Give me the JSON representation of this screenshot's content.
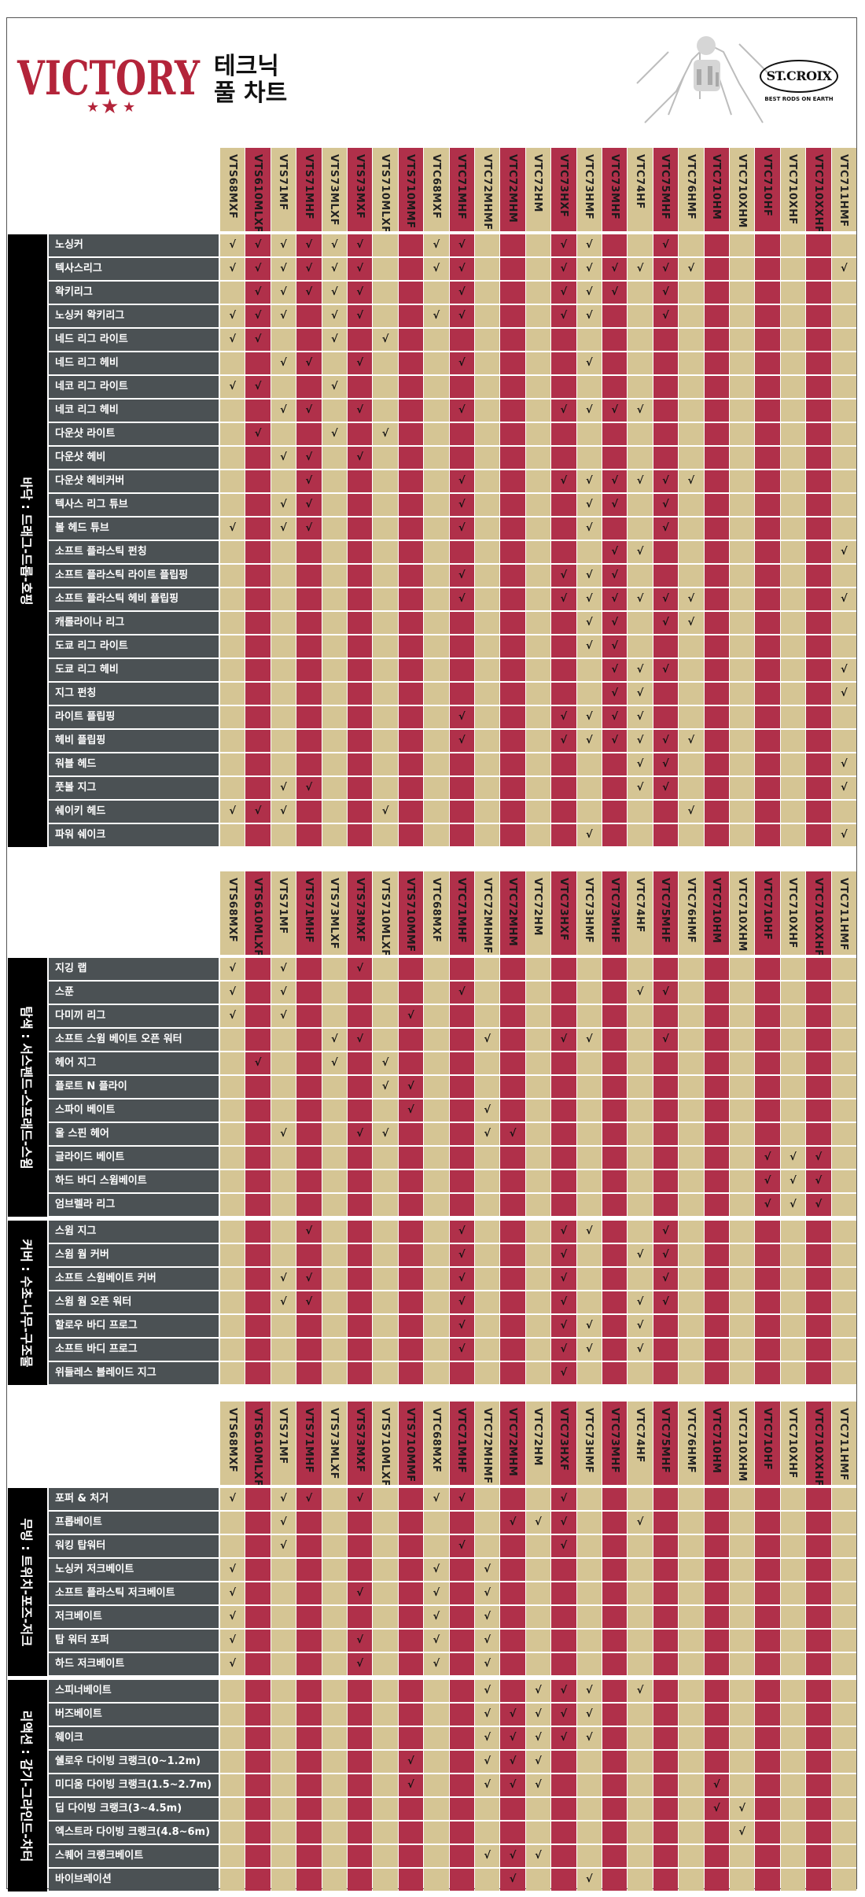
{
  "page": {
    "brand": "VICTORY",
    "title_line1": "테크닉",
    "title_line2": "풀 차트",
    "maker_logo": "ST.CROIX",
    "maker_tagline": "BEST RODS ON EARTH",
    "colors": {
      "tan": "#d5c594",
      "red": "#b0304a",
      "label_bg": "#4b5154",
      "category_bg": "#000000",
      "brand_red": "#b3243a"
    }
  },
  "models": [
    "VTS68MXF",
    "VTS610MLXF",
    "VTS71MF",
    "VTS71MHF",
    "VTS73MLXF",
    "VTS73MXF",
    "VTS710MLXF",
    "VTS710MMF",
    "VTC68MXF",
    "VTC71MHF",
    "VTC72MHMF",
    "VTC72MHM",
    "VTC72HM",
    "VTC73HXF",
    "VTC73HMF",
    "VTC73MHF",
    "VTC74HF",
    "VTC75MHF",
    "VTC76HMF",
    "VTC710HM",
    "VTC710XHM",
    "VTC710HF",
    "VTC710XHF",
    "VTC710XXHF",
    "VTC711HMF"
  ],
  "sections": [
    {
      "models": [
        "VTS68MXF",
        "VTS610MLXF",
        "VTS71MF",
        "VTS71MHF",
        "VTS73MLXF",
        "VTS73MXF",
        "VTS710MLXF",
        "VTS710MMF",
        "VTC68MXF",
        "VTC71MHF",
        "VTC72MHMF",
        "VTC72MHM",
        "VTC72HM",
        "VTC73HXF",
        "VTC73HMF",
        "VTC73MHF",
        "VTC74HF",
        "VTC75MHF",
        "VTC76HMF",
        "VTC710HM",
        "VTC710XHM",
        "VTC710HF",
        "VTC710XHF",
        "VTC710XXHF",
        "VTC711HMF"
      ],
      "groups": [
        {
          "category": "바닥 : 드래그-드롭-호핑",
          "rows": [
            {
              "label": "노싱커",
              "checks": [
                0,
                1,
                2,
                3,
                4,
                5,
                8,
                9,
                13,
                14,
                17
              ]
            },
            {
              "label": "텍사스리그",
              "checks": [
                0,
                1,
                2,
                3,
                4,
                5,
                8,
                9,
                13,
                14,
                15,
                16,
                17,
                18,
                24
              ]
            },
            {
              "label": "왁키리그",
              "checks": [
                1,
                2,
                3,
                4,
                5,
                9,
                13,
                14,
                15,
                17
              ]
            },
            {
              "label": "노싱커 왁키리그",
              "checks": [
                0,
                1,
                2,
                4,
                5,
                8,
                9,
                13,
                14,
                17
              ]
            },
            {
              "label": "네드 리그 라이트",
              "checks": [
                0,
                1,
                4,
                6
              ]
            },
            {
              "label": "네드 리그 헤비",
              "checks": [
                2,
                3,
                5,
                9,
                14
              ]
            },
            {
              "label": "네코 리그 라이트",
              "checks": [
                0,
                1,
                4
              ]
            },
            {
              "label": "네코 리그 헤비",
              "checks": [
                2,
                3,
                5,
                9,
                13,
                14,
                15,
                16
              ]
            },
            {
              "label": "다운샷 라이트",
              "checks": [
                1,
                4,
                6
              ]
            },
            {
              "label": "다운샷 헤비",
              "checks": [
                2,
                3,
                5
              ]
            },
            {
              "label": "다운샷 헤비커버",
              "checks": [
                3,
                9,
                13,
                14,
                15,
                16,
                17,
                18
              ]
            },
            {
              "label": "텍사스 리그 튜브",
              "checks": [
                2,
                3,
                9,
                14,
                15,
                17
              ]
            },
            {
              "label": "볼 헤드 튜브",
              "checks": [
                0,
                2,
                3,
                9,
                14,
                17
              ]
            },
            {
              "label": "소프트 플라스틱 펀칭",
              "checks": [
                15,
                16,
                24
              ]
            },
            {
              "label": "소프트 플라스틱 라이트 플립핑",
              "checks": [
                9,
                13,
                14,
                15
              ]
            },
            {
              "label": "소프트 플라스틱 헤비 플립핑",
              "checks": [
                9,
                13,
                14,
                15,
                16,
                17,
                18,
                24
              ]
            },
            {
              "label": "캐롤라이나 리그",
              "checks": [
                14,
                15,
                17,
                18
              ]
            },
            {
              "label": "도쿄 리그 라이트",
              "checks": [
                14,
                15
              ]
            },
            {
              "label": "도쿄 리그 헤비",
              "checks": [
                15,
                16,
                17,
                24
              ]
            },
            {
              "label": "지그 펀칭",
              "checks": [
                15,
                16,
                24
              ]
            },
            {
              "label": "라이트 플립핑",
              "checks": [
                9,
                13,
                14,
                15,
                16
              ]
            },
            {
              "label": "헤비 플립핑",
              "checks": [
                9,
                13,
                14,
                15,
                16,
                17,
                18
              ]
            },
            {
              "label": "워블 헤드",
              "checks": [
                16,
                17,
                24
              ]
            },
            {
              "label": "풋볼 지그",
              "checks": [
                2,
                3,
                16,
                17,
                24
              ]
            },
            {
              "label": "쉐이키 헤드",
              "checks": [
                0,
                1,
                2,
                6,
                18
              ]
            },
            {
              "label": "파워 쉐이크",
              "checks": [
                14,
                24
              ]
            }
          ]
        }
      ]
    },
    {
      "models": [
        "VTS68MXF",
        "VTS610MLXF",
        "VTS71MF",
        "VTS71MHF",
        "VTS73MLXF",
        "VTS73MXF",
        "VTS710MLXF",
        "VTS710MMF",
        "VTC68MXF",
        "VTC71MHF",
        "VTC72MHMF",
        "VTC72MHM",
        "VTC72HM",
        "VTC73HXF",
        "VTC73HMF",
        "VTC73MHF",
        "VTC74HF",
        "VTC75MHF",
        "VTC76HMF",
        "VTC710HM",
        "VTC710XHM",
        "VTC710HF",
        "VTC710XHF",
        "VTC710XXHF",
        "VTC711HMF"
      ],
      "groups": [
        {
          "category": "탐색 : 서스펜드-스프래드-스윔",
          "rows": [
            {
              "label": "지깅 랩",
              "checks": [
                0,
                2,
                5
              ]
            },
            {
              "label": "스푼",
              "checks": [
                0,
                2,
                9,
                16,
                17
              ]
            },
            {
              "label": "다미끼 리그",
              "checks": [
                0,
                2,
                7
              ]
            },
            {
              "label": "소프트 스윔 베이트 오픈 워터",
              "checks": [
                4,
                5,
                10,
                13,
                14,
                17
              ]
            },
            {
              "label": "헤어 지그",
              "checks": [
                1,
                4,
                6
              ]
            },
            {
              "label": "플로트 N 플라이",
              "checks": [
                6,
                7
              ]
            },
            {
              "label": "스파이 베이트",
              "checks": [
                7,
                10
              ]
            },
            {
              "label": "울 스핀 헤어",
              "checks": [
                2,
                5,
                6,
                10,
                11
              ]
            },
            {
              "label": "글라이드 베이트",
              "checks": [
                21,
                22,
                23
              ]
            },
            {
              "label": "하드 바디 스윔베이트",
              "checks": [
                21,
                22,
                23
              ]
            },
            {
              "label": "엄브렐라 리그",
              "checks": [
                21,
                22,
                23
              ]
            }
          ]
        },
        {
          "category": "커버 : 수초-나무-구조물",
          "rows": [
            {
              "label": "스윔 지그",
              "checks": [
                3,
                9,
                13,
                14,
                17
              ]
            },
            {
              "label": "스윔 웜 커버",
              "checks": [
                9,
                13,
                16,
                17
              ]
            },
            {
              "label": "소프트 스윔베이트 커버",
              "checks": [
                2,
                3,
                9,
                13,
                17
              ]
            },
            {
              "label": "스윔 웜 오픈 워터",
              "checks": [
                2,
                3,
                9,
                13,
                16,
                17
              ]
            },
            {
              "label": "할로우 바디 프로그",
              "checks": [
                9,
                13,
                14,
                16
              ]
            },
            {
              "label": "소프트 바디 프로그",
              "checks": [
                9,
                13,
                14,
                16
              ]
            },
            {
              "label": "위들레스 블레이드 지그",
              "checks": [
                13
              ]
            }
          ]
        }
      ]
    },
    {
      "models": [
        "VTS68MXF",
        "VTS610MLXF",
        "VTS71MF",
        "VTS71MHF",
        "VTS73MLXF",
        "VTS73MXF",
        "VTS710MLXF",
        "VTS710MMF",
        "VTC68MXF",
        "VTC71MHF",
        "VTC72MHMF",
        "VTC72MHM",
        "VTC72HM",
        "VTC73HXF",
        "VTC73HMF",
        "VTC73MHF",
        "VTC74HF",
        "VTC75MHF",
        "VTC76HMF",
        "VTC710HM",
        "VTC710XHM",
        "VTC710HF",
        "VTC710XHF",
        "VTC710XXHF",
        "VTC711HMF"
      ],
      "groups": [
        {
          "category": "무빙 : 트위치-포즈-저크",
          "rows": [
            {
              "label": "포퍼 & 처거",
              "checks": [
                0,
                2,
                3,
                5,
                8,
                9,
                13
              ]
            },
            {
              "label": "프롭베이트",
              "checks": [
                2,
                11,
                12,
                13,
                16
              ]
            },
            {
              "label": "워킹 탑워터",
              "checks": [
                2,
                9,
                13
              ]
            },
            {
              "label": "노싱커 저크베이트",
              "checks": [
                0,
                8,
                10
              ]
            },
            {
              "label": "소프트 플라스틱 저크베이트",
              "checks": [
                0,
                5,
                8,
                10
              ]
            },
            {
              "label": "저크베이트",
              "checks": [
                0,
                8,
                10
              ]
            },
            {
              "label": "탑 워터 포퍼",
              "checks": [
                0,
                5,
                8,
                10
              ]
            },
            {
              "label": "하드 저크베이트",
              "checks": [
                0,
                5,
                8,
                10
              ]
            }
          ]
        },
        {
          "category": "리액션 : 감기-그라인드-차터",
          "rows": [
            {
              "label": "스피너베이트",
              "checks": [
                10,
                12,
                13,
                14,
                16
              ]
            },
            {
              "label": "버즈베이트",
              "checks": [
                10,
                11,
                12,
                13,
                14
              ]
            },
            {
              "label": "웨이크",
              "checks": [
                10,
                11,
                12,
                13,
                14
              ]
            },
            {
              "label": "쉘로우 다이빙 크랭크(0~1.2m)",
              "checks": [
                7,
                10,
                11,
                12
              ]
            },
            {
              "label": "미디움 다이빙 크랭크(1.5~2.7m)",
              "checks": [
                7,
                10,
                11,
                12,
                19
              ]
            },
            {
              "label": "딥 다이빙 크랭크(3~4.5m)",
              "checks": [
                19,
                20
              ]
            },
            {
              "label": "엑스트라 다이빙 크랭크(4.8~6m)",
              "checks": [
                20
              ]
            },
            {
              "label": "스퀘어 크랭크베이트",
              "checks": [
                10,
                11,
                12
              ]
            },
            {
              "label": "바이브레이션",
              "checks": [
                11,
                14
              ]
            }
          ]
        }
      ]
    }
  ]
}
